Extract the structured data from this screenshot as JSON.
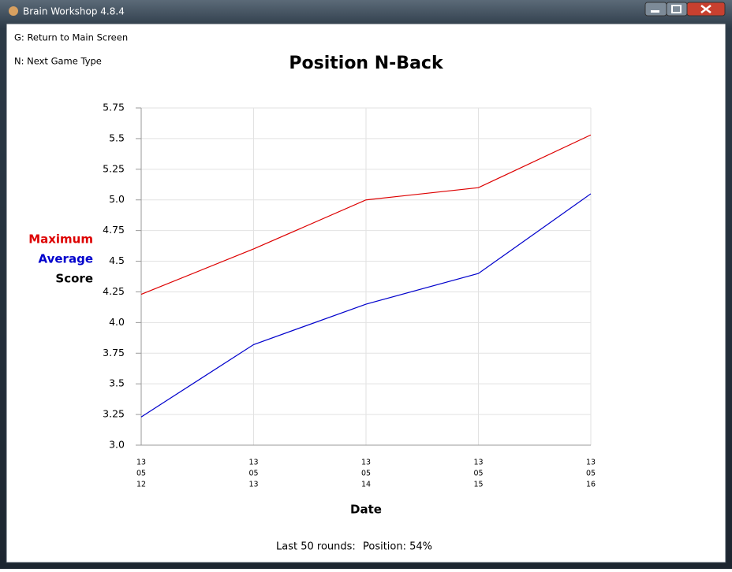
{
  "window": {
    "title": "Brain Workshop 4.8.4"
  },
  "keys": [
    "G: Return to Main Screen",
    "N: Next Game Type"
  ],
  "footer": [
    "Last 50 rounds:",
    "Position: 54%"
  ],
  "chart_data": {
    "type": "line",
    "title": "Position N-Back",
    "xlabel": "Date",
    "ylabel": "Score",
    "categories": [
      [
        "13",
        "05",
        "12"
      ],
      [
        "13",
        "05",
        "13"
      ],
      [
        "13",
        "05",
        "14"
      ],
      [
        "13",
        "05",
        "15"
      ],
      [
        "13",
        "05",
        "16"
      ]
    ],
    "series": [
      {
        "name": "Maximum",
        "color": "#dd0000",
        "values": [
          4.23,
          4.6,
          5.0,
          5.1,
          5.53
        ]
      },
      {
        "name": "Average",
        "color": "#0000cc",
        "values": [
          3.23,
          3.82,
          4.15,
          4.4,
          5.05
        ]
      }
    ],
    "ylim": [
      3,
      5.75
    ],
    "yticks": [
      {
        "value": 3,
        "label": "3.0"
      },
      3.25,
      3.5,
      3.75,
      {
        "value": 4,
        "label": "4.0"
      },
      4.25,
      4.5,
      4.75,
      {
        "value": 5,
        "label": "5.0"
      },
      5.25,
      5.5,
      5.75
    ],
    "grid": true
  }
}
